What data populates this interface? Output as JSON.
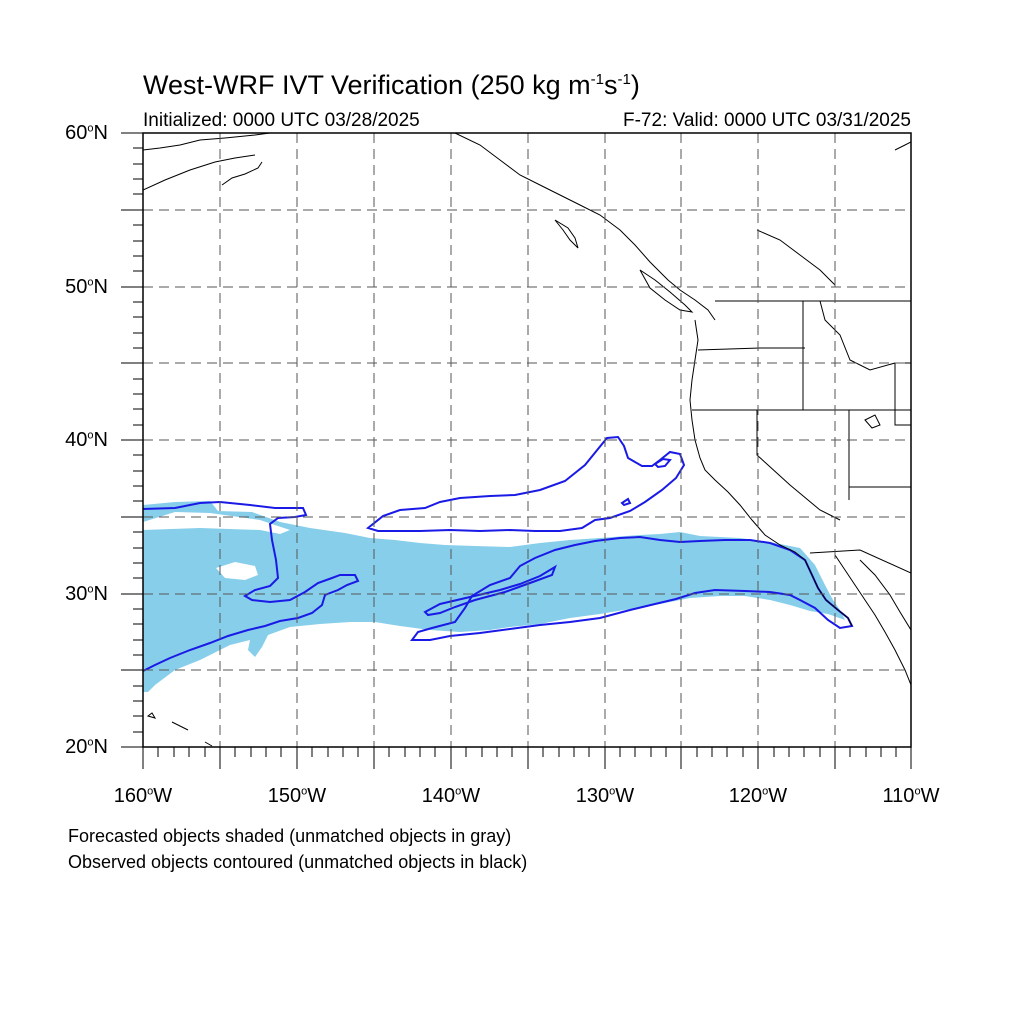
{
  "header": {
    "title_main": "West-WRF IVT Verification (250 kg m",
    "title_exp1": "-1",
    "title_mid": "s",
    "title_exp2": "-1",
    "title_end": ")",
    "initialized": "Initialized: 0000 UTC 03/28/2025",
    "valid": "F-72: Valid: 0000 UTC 03/31/2025"
  },
  "axes": {
    "lat_labels": [
      {
        "num": "60",
        "hem": "N"
      },
      {
        "num": "50",
        "hem": "N"
      },
      {
        "num": "40",
        "hem": "N"
      },
      {
        "num": "30",
        "hem": "N"
      },
      {
        "num": "20",
        "hem": "N"
      }
    ],
    "lon_labels": [
      {
        "num": "160",
        "hem": "W"
      },
      {
        "num": "150",
        "hem": "W"
      },
      {
        "num": "140",
        "hem": "W"
      },
      {
        "num": "130",
        "hem": "W"
      },
      {
        "num": "120",
        "hem": "W"
      },
      {
        "num": "110",
        "hem": "W"
      }
    ],
    "lat_range": [
      20,
      60
    ],
    "lon_range": [
      -160,
      -110
    ],
    "grid_step_deg": 5,
    "grid": true
  },
  "notes": {
    "forecast": "Forecasted objects shaded (unmatched objects in gray)",
    "observed": "Observed objects contoured (unmatched objects in black)"
  },
  "colors": {
    "forecast_fill": "#87ceeb",
    "observed_contour": "#0000dd",
    "coastline": "#000000",
    "grid": "#555555"
  }
}
